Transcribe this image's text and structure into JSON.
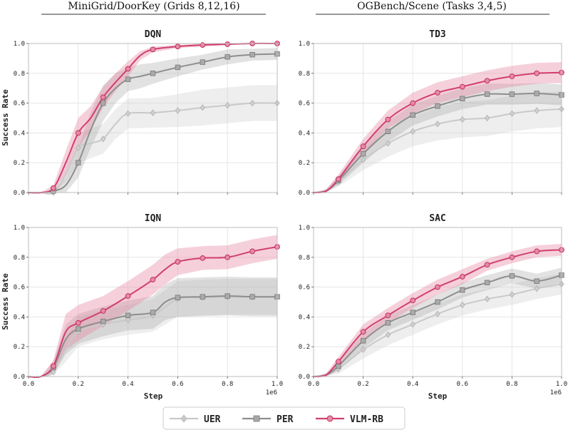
{
  "headers": {
    "left": "MiniGrid/DoorKey (Grids 8,12,16)",
    "right": "OGBench/Scene (Tasks 3,4,5)"
  },
  "axes_text": {
    "xlabel": "Step",
    "ylabel": "Success Rate",
    "x_multiplier": "1e6",
    "xticks": [
      "0.0",
      "0.2",
      "0.4",
      "0.6",
      "0.8",
      "1.0"
    ],
    "yticks": [
      "0.0",
      "0.2",
      "0.4",
      "0.6",
      "0.8",
      "1.0"
    ]
  },
  "legend": {
    "items": [
      "UER",
      "PER",
      "VLM-RB"
    ]
  },
  "colors": {
    "UER": "#c9c9c9",
    "PER": "#8e8e8e",
    "VLM-RB": "#d13f6e",
    "UER_band": "#cfcfcf",
    "PER_band": "#a0a0a0",
    "VLM-RB_band": "#e58aa6",
    "grid": "#e6e6e6",
    "header_rule": "#333333"
  },
  "chart_data": [
    {
      "type": "line",
      "title": "DQN",
      "xlabel": "",
      "ylabel": "Success Rate",
      "xlim": [
        0,
        1.0
      ],
      "ylim": [
        0,
        1.0
      ],
      "x_scale_note": "1e6",
      "series": [
        {
          "name": "UER",
          "x": [
            0,
            0.05,
            0.1,
            0.15,
            0.2,
            0.25,
            0.3,
            0.35,
            0.4,
            0.5,
            0.6,
            0.7,
            0.8,
            0.9,
            1.0
          ],
          "values": [
            0,
            0,
            0,
            0.12,
            0.3,
            0.33,
            0.36,
            0.46,
            0.53,
            0.535,
            0.55,
            0.57,
            0.585,
            0.6,
            0.6
          ],
          "spread": [
            0,
            0,
            0,
            0.05,
            0.1,
            0.1,
            0.1,
            0.1,
            0.1,
            0.1,
            0.11,
            0.12,
            0.12,
            0.12,
            0.12
          ],
          "markers": [
            0.1,
            0.2,
            0.3,
            0.4,
            0.5,
            0.6,
            0.7,
            0.8,
            0.9,
            1.0
          ]
        },
        {
          "name": "PER",
          "x": [
            0,
            0.05,
            0.1,
            0.15,
            0.2,
            0.25,
            0.3,
            0.35,
            0.4,
            0.45,
            0.5,
            0.6,
            0.7,
            0.8,
            0.9,
            1.0
          ],
          "values": [
            0,
            0,
            0.01,
            0.05,
            0.2,
            0.42,
            0.6,
            0.7,
            0.76,
            0.78,
            0.8,
            0.84,
            0.875,
            0.91,
            0.925,
            0.93
          ],
          "spread": [
            0,
            0,
            0.01,
            0.05,
            0.1,
            0.12,
            0.12,
            0.1,
            0.08,
            0.08,
            0.07,
            0.06,
            0.05,
            0.05,
            0.04,
            0.04
          ],
          "markers": [
            0.1,
            0.2,
            0.3,
            0.4,
            0.5,
            0.6,
            0.7,
            0.8,
            0.9,
            1.0
          ]
        },
        {
          "name": "VLM-RB",
          "x": [
            0,
            0.05,
            0.1,
            0.15,
            0.2,
            0.25,
            0.3,
            0.35,
            0.4,
            0.45,
            0.5,
            0.6,
            0.7,
            0.8,
            0.9,
            1.0
          ],
          "values": [
            0,
            0,
            0.03,
            0.2,
            0.4,
            0.5,
            0.64,
            0.74,
            0.83,
            0.92,
            0.96,
            0.98,
            0.99,
            0.995,
            1.0,
            1.0
          ],
          "spread": [
            0,
            0,
            0.02,
            0.08,
            0.1,
            0.08,
            0.07,
            0.06,
            0.05,
            0.03,
            0.02,
            0.01,
            0.01,
            0.005,
            0,
            0
          ],
          "markers": [
            0.1,
            0.2,
            0.3,
            0.4,
            0.5,
            0.6,
            0.7,
            0.8,
            0.9,
            1.0
          ]
        }
      ]
    },
    {
      "type": "line",
      "title": "TD3",
      "xlabel": "",
      "ylabel": "",
      "xlim": [
        0,
        1.0
      ],
      "ylim": [
        0,
        1.0
      ],
      "x_scale_note": "1e6",
      "series": [
        {
          "name": "UER",
          "x": [
            0,
            0.05,
            0.1,
            0.2,
            0.3,
            0.4,
            0.5,
            0.6,
            0.7,
            0.8,
            0.9,
            1.0
          ],
          "values": [
            0,
            0.01,
            0.07,
            0.22,
            0.33,
            0.41,
            0.46,
            0.49,
            0.5,
            0.53,
            0.55,
            0.56
          ],
          "spread": [
            0,
            0.01,
            0.03,
            0.07,
            0.09,
            0.1,
            0.11,
            0.12,
            0.12,
            0.12,
            0.12,
            0.12
          ],
          "markers": [
            0.1,
            0.2,
            0.3,
            0.4,
            0.5,
            0.6,
            0.7,
            0.8,
            0.9,
            1.0
          ]
        },
        {
          "name": "PER",
          "x": [
            0,
            0.05,
            0.1,
            0.2,
            0.3,
            0.4,
            0.5,
            0.6,
            0.7,
            0.8,
            0.9,
            1.0
          ],
          "values": [
            0,
            0.01,
            0.08,
            0.26,
            0.41,
            0.52,
            0.58,
            0.63,
            0.66,
            0.66,
            0.665,
            0.655
          ],
          "spread": [
            0,
            0.01,
            0.03,
            0.06,
            0.07,
            0.07,
            0.07,
            0.07,
            0.07,
            0.07,
            0.07,
            0.07
          ],
          "markers": [
            0.1,
            0.2,
            0.3,
            0.4,
            0.5,
            0.6,
            0.7,
            0.8,
            0.9,
            1.0
          ]
        },
        {
          "name": "VLM-RB",
          "x": [
            0,
            0.05,
            0.1,
            0.2,
            0.3,
            0.4,
            0.5,
            0.6,
            0.7,
            0.8,
            0.9,
            1.0
          ],
          "values": [
            0,
            0.01,
            0.09,
            0.31,
            0.49,
            0.6,
            0.67,
            0.71,
            0.75,
            0.78,
            0.8,
            0.805
          ],
          "spread": [
            0,
            0.01,
            0.03,
            0.05,
            0.06,
            0.07,
            0.07,
            0.07,
            0.07,
            0.07,
            0.07,
            0.07
          ],
          "markers": [
            0.1,
            0.2,
            0.3,
            0.4,
            0.5,
            0.6,
            0.7,
            0.8,
            0.9,
            1.0
          ]
        }
      ]
    },
    {
      "type": "line",
      "title": "IQN",
      "xlabel": "Step",
      "ylabel": "Success Rate",
      "xlim": [
        0,
        1.0
      ],
      "ylim": [
        0,
        1.0
      ],
      "x_scale_note": "1e6",
      "series": [
        {
          "name": "UER",
          "x": [
            0,
            0.05,
            0.1,
            0.15,
            0.2,
            0.3,
            0.4,
            0.5,
            0.6,
            0.7,
            0.8,
            0.9,
            1.0
          ],
          "values": [
            0,
            0,
            0.03,
            0.18,
            0.3,
            0.35,
            0.38,
            0.41,
            0.52,
            0.53,
            0.535,
            0.535,
            0.535
          ],
          "spread": [
            0,
            0,
            0.02,
            0.08,
            0.1,
            0.1,
            0.1,
            0.11,
            0.12,
            0.12,
            0.12,
            0.12,
            0.12
          ],
          "markers": [
            0.1,
            0.2,
            0.3,
            0.4,
            0.5,
            0.6,
            0.7,
            0.8,
            0.9,
            1.0
          ]
        },
        {
          "name": "PER",
          "x": [
            0,
            0.05,
            0.1,
            0.15,
            0.2,
            0.3,
            0.4,
            0.5,
            0.55,
            0.6,
            0.7,
            0.8,
            0.9,
            1.0
          ],
          "values": [
            0,
            0,
            0.06,
            0.25,
            0.32,
            0.37,
            0.41,
            0.43,
            0.5,
            0.53,
            0.535,
            0.54,
            0.535,
            0.535
          ],
          "spread": [
            0,
            0,
            0.04,
            0.1,
            0.1,
            0.1,
            0.1,
            0.11,
            0.12,
            0.13,
            0.13,
            0.13,
            0.13,
            0.13
          ],
          "markers": [
            0.1,
            0.2,
            0.3,
            0.4,
            0.5,
            0.6,
            0.7,
            0.8,
            0.9,
            1.0
          ]
        },
        {
          "name": "VLM-RB",
          "x": [
            0,
            0.05,
            0.1,
            0.15,
            0.2,
            0.3,
            0.4,
            0.5,
            0.55,
            0.6,
            0.7,
            0.8,
            0.9,
            1.0
          ],
          "values": [
            0,
            0,
            0.07,
            0.3,
            0.36,
            0.44,
            0.54,
            0.65,
            0.72,
            0.77,
            0.795,
            0.8,
            0.84,
            0.87
          ],
          "spread": [
            0,
            0,
            0.04,
            0.12,
            0.12,
            0.1,
            0.1,
            0.1,
            0.1,
            0.09,
            0.08,
            0.08,
            0.08,
            0.08
          ],
          "markers": [
            0.1,
            0.2,
            0.3,
            0.4,
            0.5,
            0.6,
            0.7,
            0.8,
            0.9,
            1.0
          ]
        }
      ]
    },
    {
      "type": "line",
      "title": "SAC",
      "xlabel": "Step",
      "ylabel": "",
      "xlim": [
        0,
        1.0
      ],
      "ylim": [
        0,
        1.0
      ],
      "x_scale_note": "1e6",
      "series": [
        {
          "name": "UER",
          "x": [
            0,
            0.05,
            0.1,
            0.2,
            0.3,
            0.4,
            0.5,
            0.6,
            0.7,
            0.8,
            0.9,
            1.0
          ],
          "values": [
            0,
            0.01,
            0.05,
            0.18,
            0.28,
            0.35,
            0.42,
            0.48,
            0.52,
            0.55,
            0.59,
            0.62
          ],
          "spread": [
            0,
            0.01,
            0.03,
            0.06,
            0.07,
            0.07,
            0.07,
            0.07,
            0.07,
            0.07,
            0.07,
            0.07
          ],
          "markers": [
            0.1,
            0.2,
            0.3,
            0.4,
            0.5,
            0.6,
            0.7,
            0.8,
            0.9,
            1.0
          ]
        },
        {
          "name": "PER",
          "x": [
            0,
            0.05,
            0.1,
            0.2,
            0.3,
            0.4,
            0.5,
            0.6,
            0.7,
            0.8,
            0.9,
            1.0
          ],
          "values": [
            0,
            0.01,
            0.07,
            0.24,
            0.36,
            0.43,
            0.5,
            0.58,
            0.63,
            0.675,
            0.64,
            0.68
          ],
          "spread": [
            0,
            0.01,
            0.03,
            0.05,
            0.05,
            0.05,
            0.05,
            0.05,
            0.05,
            0.05,
            0.05,
            0.05
          ],
          "markers": [
            0.1,
            0.2,
            0.3,
            0.4,
            0.5,
            0.6,
            0.7,
            0.8,
            0.9,
            1.0
          ]
        },
        {
          "name": "VLM-RB",
          "x": [
            0,
            0.05,
            0.1,
            0.2,
            0.3,
            0.4,
            0.5,
            0.6,
            0.7,
            0.8,
            0.9,
            1.0
          ],
          "values": [
            0,
            0.01,
            0.1,
            0.3,
            0.41,
            0.51,
            0.6,
            0.67,
            0.75,
            0.8,
            0.84,
            0.85
          ],
          "spread": [
            0,
            0.01,
            0.03,
            0.05,
            0.05,
            0.05,
            0.05,
            0.05,
            0.04,
            0.04,
            0.04,
            0.04
          ],
          "markers": [
            0.1,
            0.2,
            0.3,
            0.4,
            0.5,
            0.6,
            0.7,
            0.8,
            0.9,
            1.0
          ]
        }
      ]
    }
  ]
}
